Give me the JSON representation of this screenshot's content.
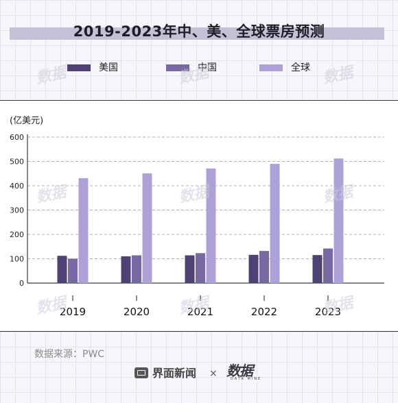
{
  "title": "2019-2023年中、美、全球票房预测",
  "unit_label": "(亿美元)",
  "source": "数据来源：PWC",
  "footer": {
    "brand": "界面新闻",
    "times": "×",
    "logo": "数据",
    "logo_sub": "DATA MINE"
  },
  "watermark_text": "数据",
  "colors": {
    "us": "#4e4275",
    "china": "#776aa3",
    "global": "#ada1d8",
    "grid": "#b0b0b0",
    "axis": "#3a3842"
  },
  "chart_data": {
    "type": "bar",
    "categories": [
      "2019",
      "2020",
      "2021",
      "2022",
      "2023"
    ],
    "series": [
      {
        "name": "美国",
        "values": [
          112,
          110,
          114,
          116,
          115
        ]
      },
      {
        "name": "中国",
        "values": [
          100,
          114,
          123,
          132,
          142
        ]
      },
      {
        "name": "全球",
        "values": [
          431,
          451,
          471,
          490,
          512
        ]
      }
    ],
    "yticks": [
      0,
      100,
      200,
      300,
      400,
      500,
      600
    ],
    "ylim": [
      0,
      600
    ],
    "ylabel": "(亿美元)",
    "xlabel": "",
    "title": "2019-2023年中、美、全球票房预测",
    "grid": true,
    "legend": "top"
  }
}
